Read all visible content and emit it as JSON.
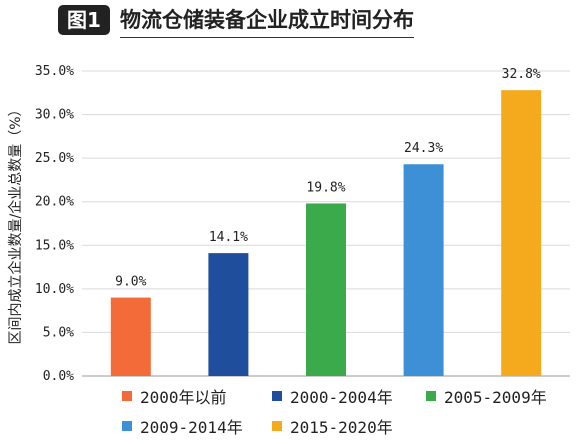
{
  "header": {
    "badge": "图1",
    "title": "物流仓储装备企业成立时间分布"
  },
  "chart_data": {
    "type": "bar",
    "ylabel": "区间内成立企业数量/企业总数量（%）",
    "xlabel": "",
    "ylim": [
      0,
      35
    ],
    "yticks": [
      0,
      5,
      10,
      15,
      20,
      25,
      30,
      35
    ],
    "ytick_labels": [
      "0.0%",
      "5.0%",
      "10.0%",
      "15.0%",
      "20.0%",
      "25.0%",
      "30.0%",
      "35.0%"
    ],
    "categories": [
      "2000年以前",
      "2000-2004年",
      "2005-2009年",
      "2009-2014年",
      "2015-2020年"
    ],
    "values": [
      9.0,
      14.1,
      19.8,
      24.3,
      32.8
    ],
    "data_labels": [
      "9.0%",
      "14.1%",
      "19.8%",
      "24.3%",
      "32.8%"
    ],
    "colors": [
      "#F26B38",
      "#1F4E9C",
      "#3BAA4A",
      "#3D8FD6",
      "#F5A91C"
    ],
    "grid": true,
    "legend_position": "bottom"
  }
}
